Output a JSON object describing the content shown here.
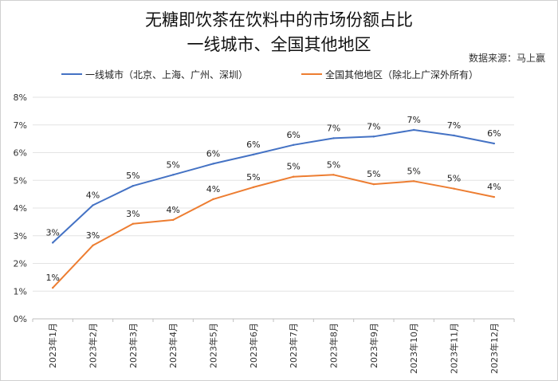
{
  "title_line1": "无糖即饮茶在饮料中的市场份额占比",
  "title_line2": "一线城市、全国其他地区",
  "source": "数据来源：马上赢",
  "chart_data": {
    "type": "line",
    "categories": [
      "2023年1月",
      "2023年2月",
      "2023年3月",
      "2023年4月",
      "2023年5月",
      "2023年6月",
      "2023年7月",
      "2023年8月",
      "2023年9月",
      "2023年10月",
      "2023年11月",
      "2023年12月"
    ],
    "ylim": [
      0,
      8
    ],
    "yticks": [
      "0%",
      "1%",
      "2%",
      "3%",
      "4%",
      "5%",
      "6%",
      "7%",
      "8%"
    ],
    "grid": true,
    "legend_position": "top",
    "series": [
      {
        "name": "一线城市（北京、上海、广州、深圳）",
        "color": "#4472c4",
        "values": [
          2.75,
          4.1,
          4.8,
          5.2,
          5.6,
          5.93,
          6.28,
          6.52,
          6.58,
          6.82,
          6.62,
          6.33
        ],
        "labels": [
          "3%",
          "4%",
          "5%",
          "5%",
          "6%",
          "6%",
          "6%",
          "7%",
          "7%",
          "7%",
          "7%",
          "6%"
        ]
      },
      {
        "name": "全国其他地区（除北上广深外所有）",
        "color": "#ed7d31",
        "values": [
          1.12,
          2.65,
          3.43,
          3.57,
          4.32,
          4.75,
          5.13,
          5.2,
          4.86,
          4.97,
          4.7,
          4.4
        ],
        "labels": [
          "1%",
          "3%",
          "3%",
          "4%",
          "4%",
          "5%",
          "5%",
          "5%",
          "5%",
          "5%",
          "5%",
          "4%"
        ]
      }
    ]
  }
}
